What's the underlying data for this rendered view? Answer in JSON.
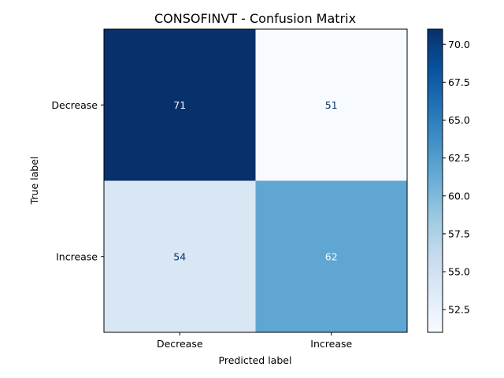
{
  "chart_data": {
    "type": "heatmap",
    "title": "CONSOFINVT - Confusion Matrix",
    "xlabel": "Predicted label",
    "ylabel": "True label",
    "x_categories": [
      "Decrease",
      "Increase"
    ],
    "y_categories": [
      "Decrease",
      "Increase"
    ],
    "values": [
      [
        71,
        51
      ],
      [
        54,
        62
      ]
    ],
    "colormap": "Blues",
    "colorbar": {
      "min": 51,
      "max": 71,
      "ticks": [
        "52.5",
        "55.0",
        "57.5",
        "60.0",
        "62.5",
        "65.0",
        "67.5",
        "70.0"
      ]
    },
    "colors": {
      "cells": [
        [
          "#08306b",
          "#f7fbff"
        ],
        [
          "#d9e7f5",
          "#60a6d2"
        ]
      ],
      "dark_text": "#08306b",
      "light_text": "#f7fbff"
    }
  }
}
